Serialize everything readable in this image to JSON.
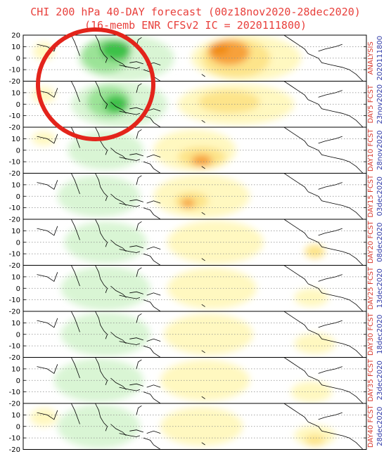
{
  "title": {
    "line1": "CHI 200 hPa 40-DAY forecast (00z18nov2020-28dec2020)",
    "line2": "(16-memb ENR CFSv2 IC = 2020111800)"
  },
  "colors": {
    "title": "#e8403c",
    "side_label_top": "#d8382c",
    "side_label_date": "#2f3aa8",
    "circle": "#e3241b",
    "green_light": "#d9f5d4",
    "green_mid": "#9be397",
    "green_dark": "#3cc14a",
    "yellow_light": "#fff8c0",
    "yellow_mid": "#fde48a",
    "orange": "#f7a13a",
    "dark_orange": "#f08a10"
  },
  "chart_data": {
    "type": "heatmap",
    "ylim": [
      -20,
      20
    ],
    "y_ticks": [
      "20",
      "10",
      "0",
      "-10",
      "-20"
    ],
    "panels": [
      {
        "label_top": "ANALYSIS",
        "label_date": "2020111800",
        "features": [
          {
            "kind": "neg",
            "level": 3,
            "lon_center": 0.27,
            "lat_center": 7,
            "w": 0.09,
            "h": 18
          },
          {
            "kind": "neg",
            "level": 2,
            "lon_center": 0.24,
            "lat_center": 2,
            "w": 0.14,
            "h": 30
          },
          {
            "kind": "neg",
            "level": 1,
            "lon_center": 0.3,
            "lat_center": 0,
            "w": 0.28,
            "h": 40
          },
          {
            "kind": "pos",
            "level": 4,
            "lon_center": 0.57,
            "lat_center": 8,
            "w": 0.06,
            "h": 10
          },
          {
            "kind": "pos",
            "level": 3,
            "lon_center": 0.6,
            "lat_center": 5,
            "w": 0.12,
            "h": 22
          },
          {
            "kind": "pos",
            "level": 2,
            "lon_center": 0.62,
            "lat_center": 0,
            "w": 0.2,
            "h": 34
          },
          {
            "kind": "pos",
            "level": 1,
            "lon_center": 0.65,
            "lat_center": 0,
            "w": 0.32,
            "h": 40
          },
          {
            "kind": "pos",
            "level": 1,
            "lon_center": 0.06,
            "lat_center": 6,
            "w": 0.06,
            "h": 16
          }
        ]
      },
      {
        "label_top": "DAY5 FCST",
        "label_date": "23nov2020",
        "features": [
          {
            "kind": "neg",
            "level": 3,
            "lon_center": 0.27,
            "lat_center": 0,
            "w": 0.07,
            "h": 16
          },
          {
            "kind": "neg",
            "level": 2,
            "lon_center": 0.25,
            "lat_center": 2,
            "w": 0.13,
            "h": 28
          },
          {
            "kind": "neg",
            "level": 1,
            "lon_center": 0.28,
            "lat_center": 0,
            "w": 0.28,
            "h": 40
          },
          {
            "kind": "pos",
            "level": 2,
            "lon_center": 0.6,
            "lat_center": 2,
            "w": 0.18,
            "h": 20
          },
          {
            "kind": "pos",
            "level": 1,
            "lon_center": 0.62,
            "lat_center": 0,
            "w": 0.34,
            "h": 36
          },
          {
            "kind": "pos",
            "level": 1,
            "lon_center": 0.06,
            "lat_center": 8,
            "w": 0.07,
            "h": 14
          }
        ]
      },
      {
        "label_top": "DAY10 FCST",
        "label_date": "28nov2020",
        "features": [
          {
            "kind": "neg",
            "level": 1,
            "lon_center": 0.24,
            "lat_center": 0,
            "w": 0.22,
            "h": 34
          },
          {
            "kind": "pos",
            "level": 3,
            "lon_center": 0.52,
            "lat_center": -9,
            "w": 0.06,
            "h": 10
          },
          {
            "kind": "pos",
            "level": 2,
            "lon_center": 0.52,
            "lat_center": -6,
            "w": 0.14,
            "h": 18
          },
          {
            "kind": "pos",
            "level": 1,
            "lon_center": 0.5,
            "lat_center": 0,
            "w": 0.24,
            "h": 36
          },
          {
            "kind": "pos",
            "level": 1,
            "lon_center": 0.06,
            "lat_center": 10,
            "w": 0.07,
            "h": 12
          }
        ]
      },
      {
        "label_top": "DAY15 FCST",
        "label_date": "03dec2020",
        "features": [
          {
            "kind": "neg",
            "level": 1,
            "lon_center": 0.22,
            "lat_center": 0,
            "w": 0.24,
            "h": 36
          },
          {
            "kind": "pos",
            "level": 3,
            "lon_center": 0.48,
            "lat_center": -6,
            "w": 0.04,
            "h": 8
          },
          {
            "kind": "pos",
            "level": 2,
            "lon_center": 0.49,
            "lat_center": -4,
            "w": 0.1,
            "h": 16
          },
          {
            "kind": "pos",
            "level": 1,
            "lon_center": 0.52,
            "lat_center": 0,
            "w": 0.28,
            "h": 38
          }
        ]
      },
      {
        "label_top": "DAY20 FCST",
        "label_date": "08dec2020",
        "features": [
          {
            "kind": "neg",
            "level": 1,
            "lon_center": 0.24,
            "lat_center": 0,
            "w": 0.24,
            "h": 36
          },
          {
            "kind": "pos",
            "level": 1,
            "lon_center": 0.56,
            "lat_center": 0,
            "w": 0.28,
            "h": 38
          },
          {
            "kind": "pos",
            "level": 2,
            "lon_center": 0.85,
            "lat_center": -8,
            "w": 0.06,
            "h": 12
          }
        ]
      },
      {
        "label_top": "DAY25 FCST",
        "label_date": "13dec2020",
        "features": [
          {
            "kind": "neg",
            "level": 1,
            "lon_center": 0.24,
            "lat_center": 0,
            "w": 0.26,
            "h": 38
          },
          {
            "kind": "pos",
            "level": 1,
            "lon_center": 0.55,
            "lat_center": 0,
            "w": 0.26,
            "h": 36
          },
          {
            "kind": "pos",
            "level": 1,
            "lon_center": 0.84,
            "lat_center": -8,
            "w": 0.1,
            "h": 16
          }
        ]
      },
      {
        "label_top": "DAY30 FCST",
        "label_date": "18dec2020",
        "features": [
          {
            "kind": "neg",
            "level": 1,
            "lon_center": 0.24,
            "lat_center": 0,
            "w": 0.26,
            "h": 38
          },
          {
            "kind": "pos",
            "level": 1,
            "lon_center": 0.54,
            "lat_center": 0,
            "w": 0.26,
            "h": 36
          },
          {
            "kind": "pos",
            "level": 1,
            "lon_center": 0.85,
            "lat_center": -8,
            "w": 0.12,
            "h": 18
          }
        ]
      },
      {
        "label_top": "DAY35 FCST",
        "label_date": "23dec2020",
        "features": [
          {
            "kind": "neg",
            "level": 1,
            "lon_center": 0.22,
            "lat_center": 0,
            "w": 0.26,
            "h": 38
          },
          {
            "kind": "pos",
            "level": 1,
            "lon_center": 0.53,
            "lat_center": 0,
            "w": 0.26,
            "h": 36
          },
          {
            "kind": "pos",
            "level": 1,
            "lon_center": 0.84,
            "lat_center": -10,
            "w": 0.12,
            "h": 18
          }
        ]
      },
      {
        "label_top": "DAY40 FCST",
        "label_date": "28dec2020",
        "features": [
          {
            "kind": "neg",
            "level": 1,
            "lon_center": 0.22,
            "lat_center": 0,
            "w": 0.24,
            "h": 38
          },
          {
            "kind": "pos",
            "level": 1,
            "lon_center": 0.06,
            "lat_center": 8,
            "w": 0.08,
            "h": 16
          },
          {
            "kind": "pos",
            "level": 1,
            "lon_center": 0.52,
            "lat_center": 0,
            "w": 0.24,
            "h": 34
          },
          {
            "kind": "pos",
            "level": 2,
            "lon_center": 0.85,
            "lat_center": -12,
            "w": 0.06,
            "h": 10
          },
          {
            "kind": "pos",
            "level": 1,
            "lon_center": 0.85,
            "lat_center": -8,
            "w": 0.12,
            "h": 18
          }
        ]
      }
    ]
  }
}
